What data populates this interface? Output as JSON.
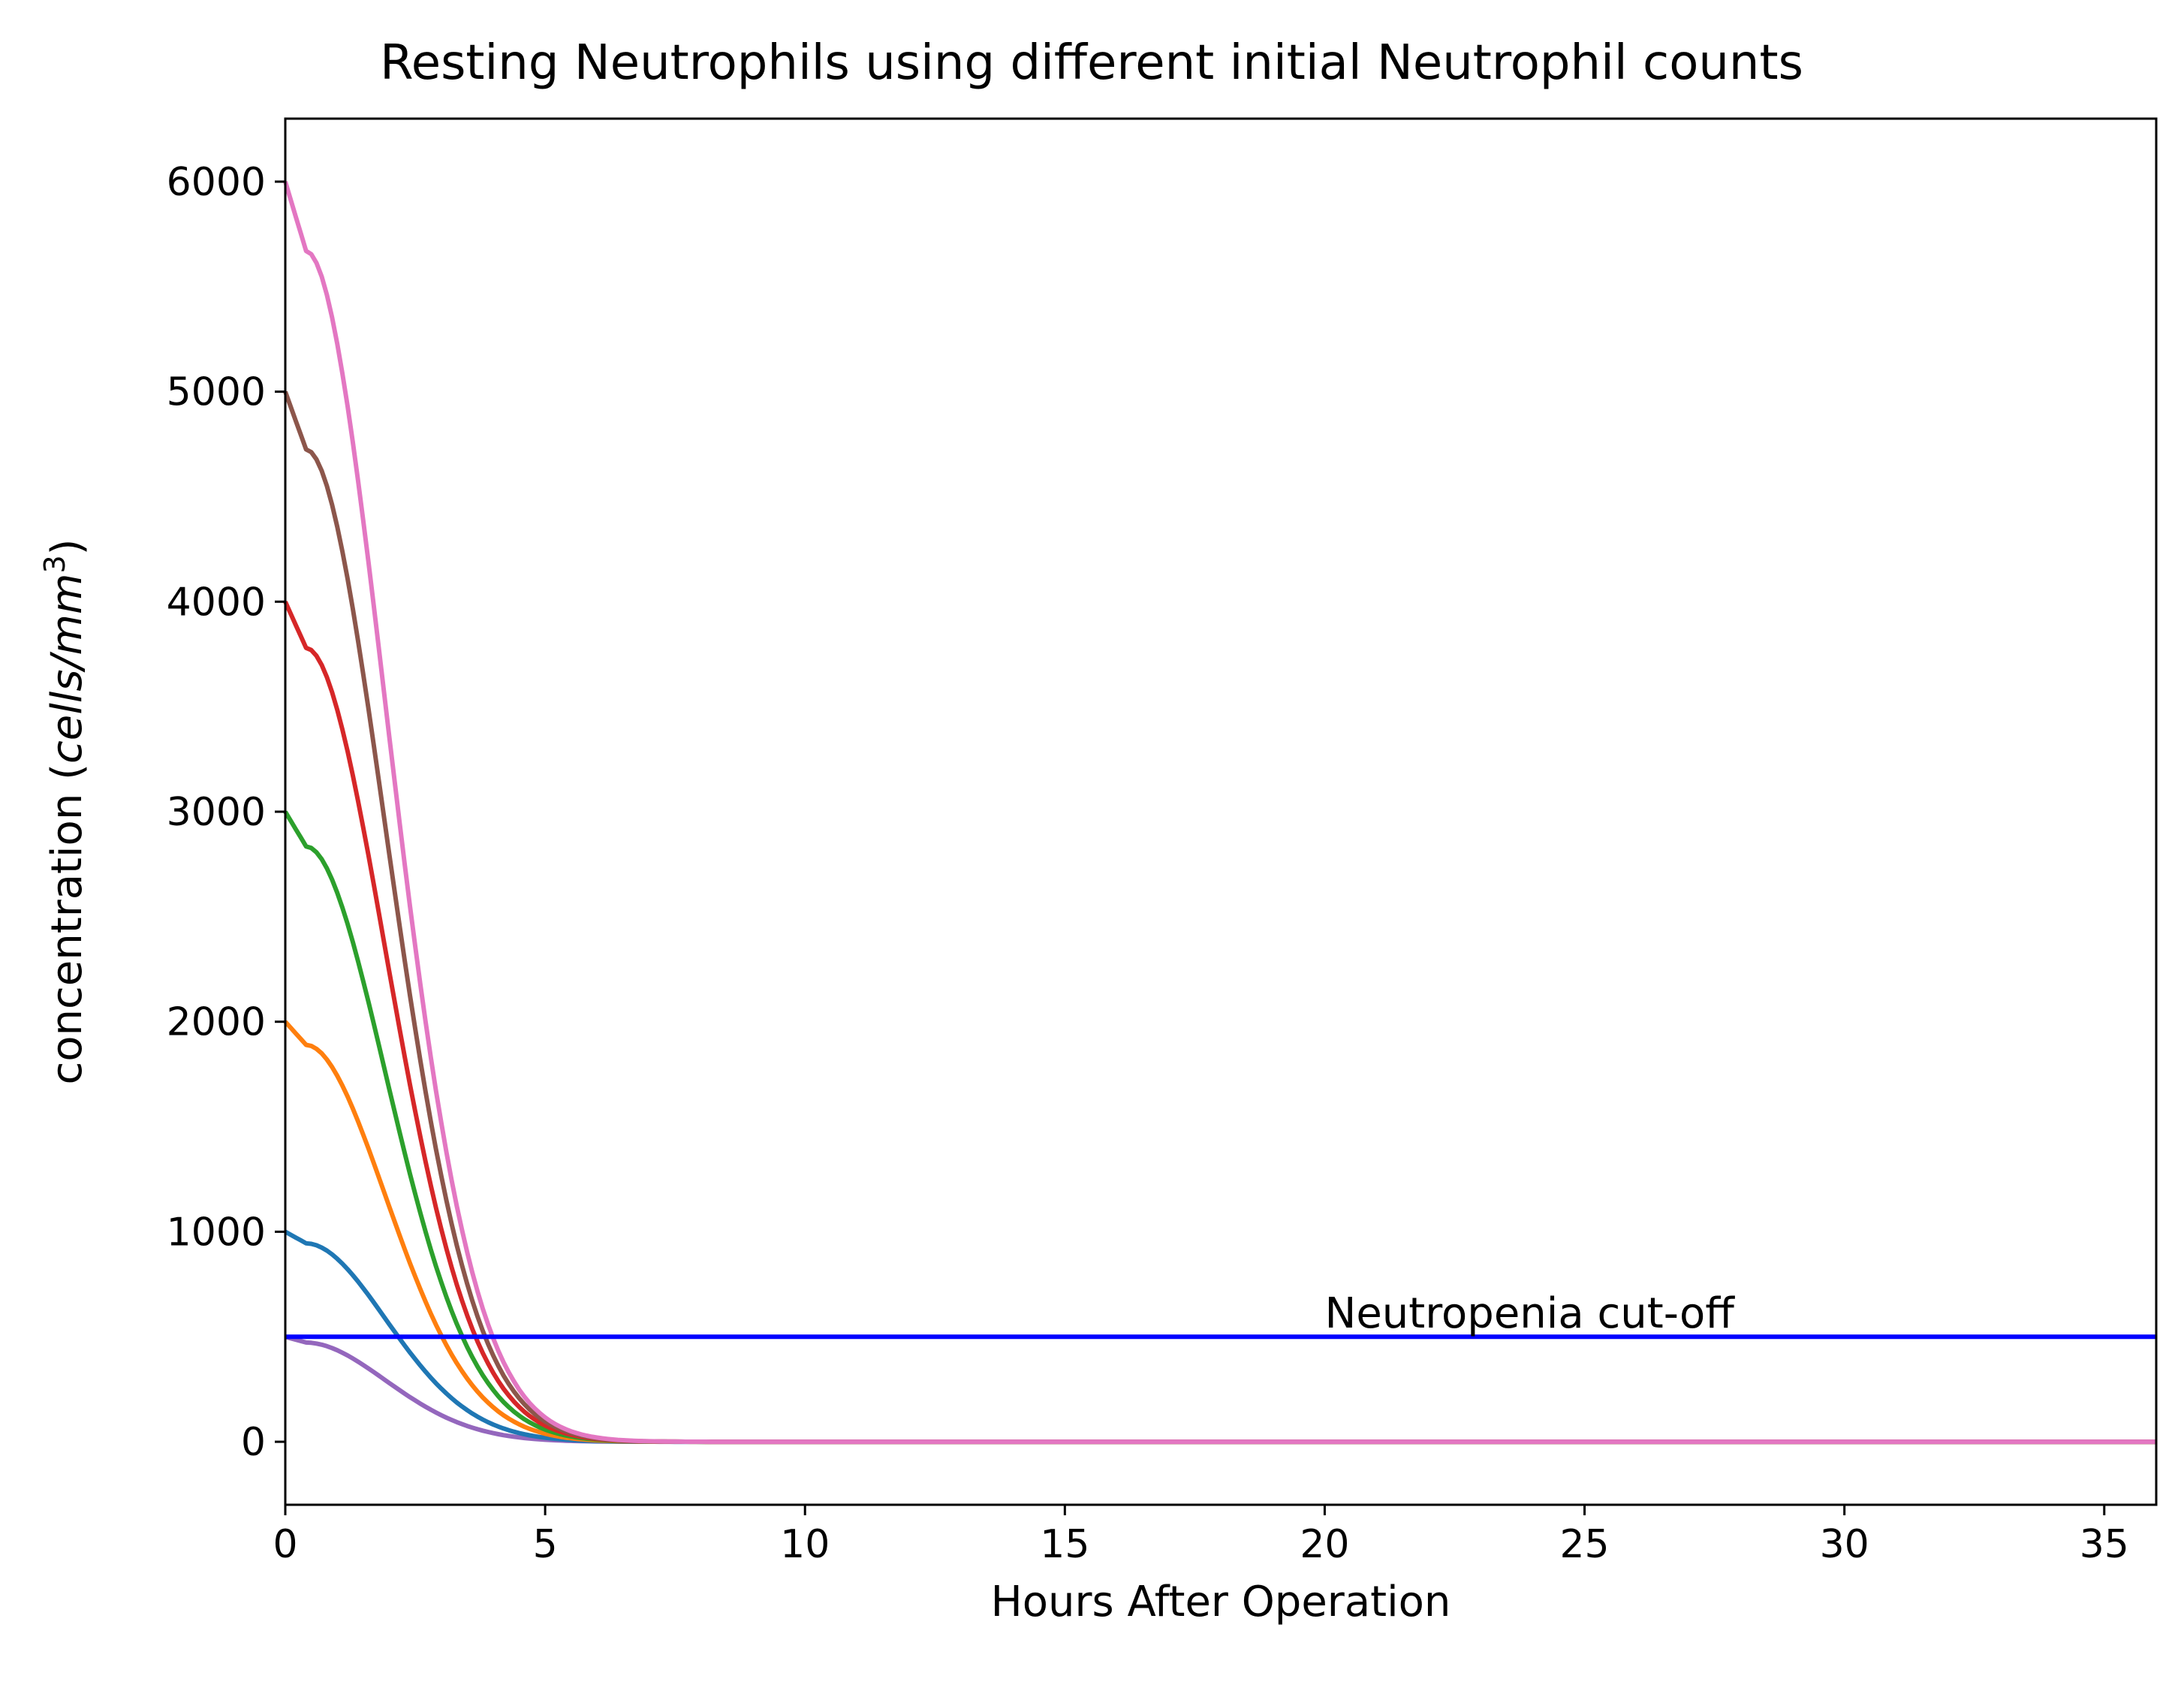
{
  "chart_data": {
    "type": "line",
    "title": "Resting Neutrophils using different initial Neutrophil counts",
    "xlabel": "Hours After Operation",
    "ylabel_main": "concentration (",
    "ylabel_unit": "cells/mm",
    "ylabel_sup": "3",
    "ylabel_close": ")",
    "xlim": [
      0,
      36
    ],
    "ylim": [
      -300,
      6300
    ],
    "xticks": [
      0,
      5,
      10,
      15,
      20,
      25,
      30,
      35
    ],
    "yticks": [
      0,
      1000,
      2000,
      3000,
      4000,
      5000,
      6000
    ],
    "grid": false,
    "decay": {
      "time_const": 2.25,
      "power": 1.9,
      "delay": 0.4,
      "dip": 0.055
    },
    "series": [
      {
        "initial": 500,
        "color": "#9467bd"
      },
      {
        "initial": 1000,
        "color": "#1f77b4"
      },
      {
        "initial": 2000,
        "color": "#ff7f0e"
      },
      {
        "initial": 3000,
        "color": "#2ca02c"
      },
      {
        "initial": 4000,
        "color": "#d62728"
      },
      {
        "initial": 5000,
        "color": "#8c564b"
      },
      {
        "initial": 6000,
        "color": "#e377c2"
      }
    ],
    "reference_line": {
      "y": 500,
      "color": "#0000ff",
      "label": "Neutropenia cut-off",
      "label_x": 20
    }
  }
}
